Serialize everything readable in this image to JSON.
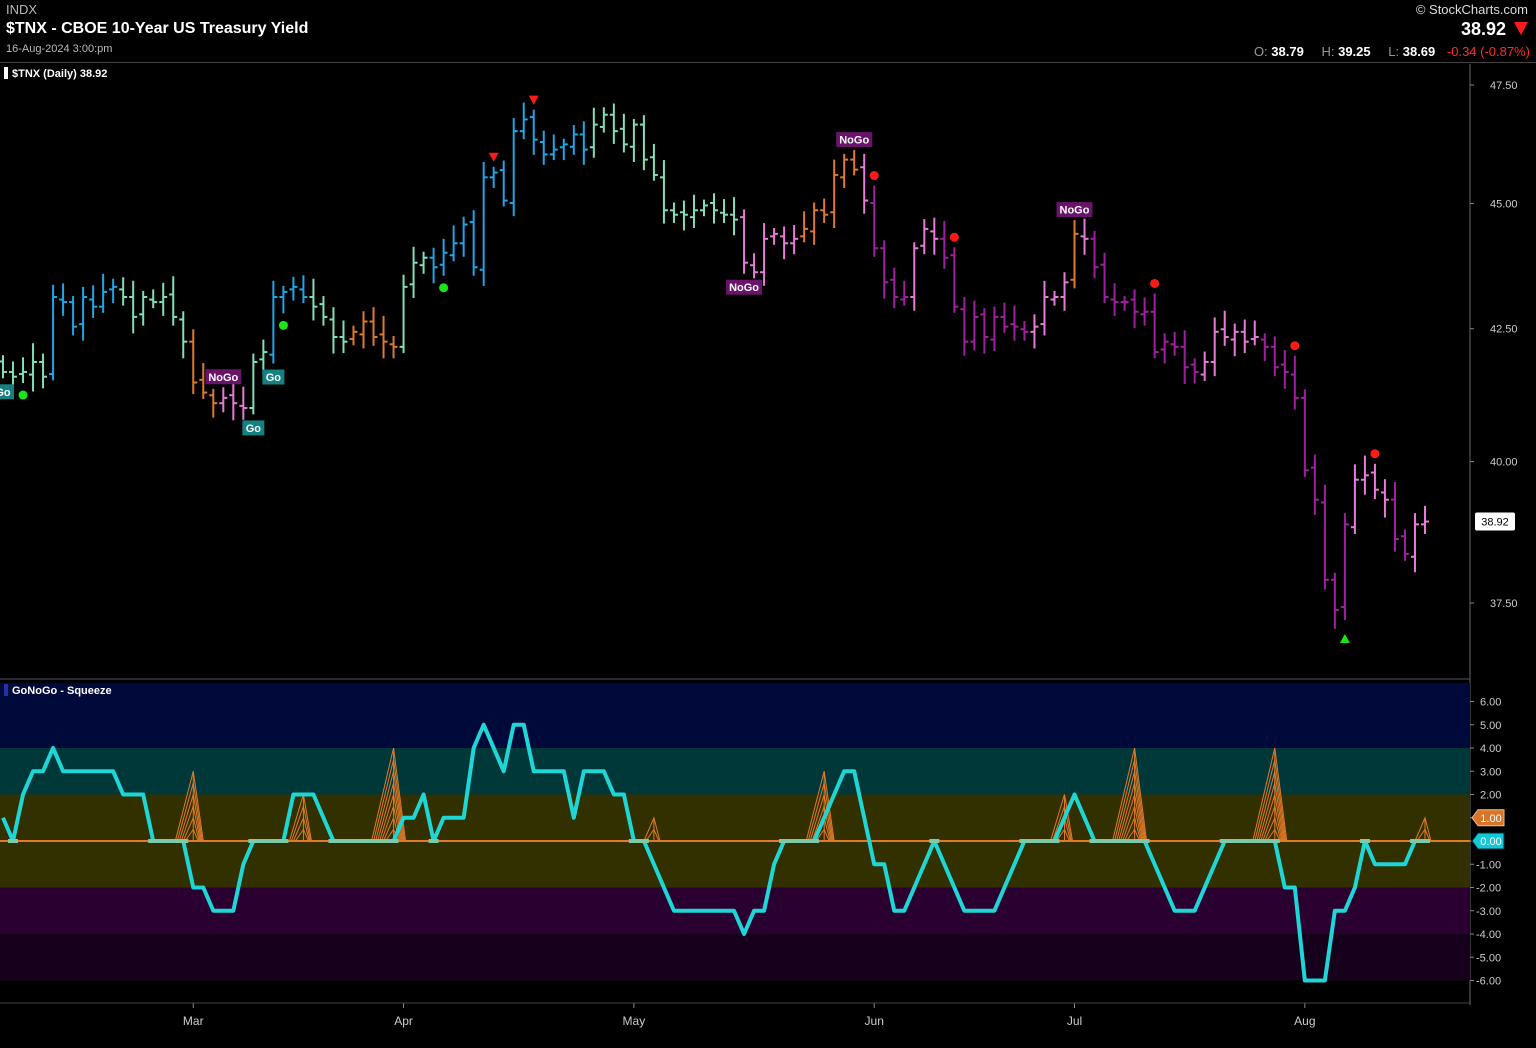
{
  "header": {
    "exchange": "INDX",
    "title": "$TNX - CBOE 10-Year US Treasury Yield",
    "datetime": "16-Aug-2024 3:00:pm",
    "brand": "© StockCharts.com",
    "last": "38.92",
    "direction_icon": "triangle-down-icon",
    "open_label": "O:",
    "open": "38.79",
    "high_label": "H:",
    "high": "39.25",
    "low_label": "L:",
    "low": "38.69",
    "change": "-0.34 (-0.87%)"
  },
  "colors": {
    "aqua": "#7fe0b8",
    "blue": "#1fa6e8",
    "orange": "#e07a2a",
    "pink": "#e87ad8",
    "purple": "#a01fa0",
    "oscillator": "#1fd6d6",
    "squeeze": "#e07a2a",
    "up_signal": "#19e619",
    "down_signal": "#ff1a1a"
  },
  "chart_data": [
    {
      "type": "bar",
      "legend": "$TNX (Daily) 38.92",
      "scale": "log",
      "ylim": [
        36.5,
        48.0
      ],
      "y_ticks": [
        "47.50",
        "45.00",
        "42.50",
        "40.00",
        "37.50"
      ],
      "last_value_label": "38.92",
      "x_month_ticks": [
        {
          "label": "Mar",
          "i": 19
        },
        {
          "label": "Apr",
          "i": 40
        },
        {
          "label": "May",
          "i": 63
        },
        {
          "label": "Jun",
          "i": 87
        },
        {
          "label": "Jul",
          "i": 107
        },
        {
          "label": "Aug",
          "i": 130
        }
      ],
      "close": [
        41.67,
        41.58,
        41.67,
        41.86,
        41.58,
        43.12,
        43.02,
        42.54,
        43.12,
        42.93,
        43.22,
        43.32,
        43.12,
        42.73,
        43.12,
        43.02,
        43.12,
        42.73,
        42.25,
        41.47,
        41.28,
        41.08,
        41.18,
        41.08,
        40.99,
        41.86,
        42.05,
        43.12,
        43.22,
        43.32,
        43.12,
        42.93,
        42.73,
        42.34,
        42.25,
        42.44,
        42.64,
        42.34,
        42.25,
        42.15,
        43.32,
        43.8,
        43.9,
        43.71,
        44.0,
        44.19,
        44.57,
        43.71,
        45.54,
        45.64,
        45.06,
        46.51,
        46.76,
        46.33,
        46.02,
        46.12,
        46.23,
        46.44,
        46.12,
        46.65,
        46.86,
        46.51,
        46.23,
        46.65,
        45.91,
        45.59,
        44.86,
        44.77,
        44.77,
        44.86,
        44.96,
        44.86,
        44.77,
        44.67,
        43.8,
        43.61,
        44.28,
        44.38,
        44.19,
        44.28,
        44.48,
        44.86,
        44.77,
        45.59,
        45.91,
        45.7,
        45.06,
        44.09,
        43.41,
        43.12,
        43.12,
        44.09,
        44.48,
        44.28,
        43.9,
        42.93,
        42.25,
        42.73,
        42.34,
        42.73,
        42.54,
        42.54,
        42.44,
        42.54,
        43.12,
        43.12,
        43.41,
        44.38,
        44.28,
        43.71,
        43.12,
        43.02,
        43.02,
        42.83,
        42.83,
        42.05,
        42.25,
        42.15,
        41.76,
        41.67,
        41.86,
        42.44,
        42.34,
        42.44,
        42.25,
        42.34,
        42.15,
        41.76,
        41.67,
        41.18,
        39.84,
        39.31,
        37.9,
        37.38,
        38.87,
        39.67,
        39.75,
        39.49,
        39.31,
        38.61,
        38.35,
        38.87,
        38.92
      ],
      "regimes": [
        [
          0,
          "aqua"
        ],
        [
          5,
          "blue"
        ],
        [
          12,
          "aqua"
        ],
        [
          19,
          "orange"
        ],
        [
          22,
          "pink"
        ],
        [
          25,
          "aqua"
        ],
        [
          27,
          "blue"
        ],
        [
          31,
          "aqua"
        ],
        [
          35,
          "orange"
        ],
        [
          40,
          "aqua"
        ],
        [
          43,
          "blue"
        ],
        [
          59,
          "aqua"
        ],
        [
          74,
          "pink"
        ],
        [
          80,
          "orange"
        ],
        [
          86,
          "pink"
        ],
        [
          87,
          "purple"
        ],
        [
          91,
          "pink"
        ],
        [
          94,
          "purple"
        ],
        [
          103,
          "pink"
        ],
        [
          107,
          "orange"
        ],
        [
          108,
          "pink"
        ],
        [
          109,
          "purple"
        ],
        [
          120,
          "pink"
        ],
        [
          126,
          "purple"
        ],
        [
          135,
          "pink"
        ],
        [
          139,
          "purple"
        ],
        [
          141,
          "pink"
        ]
      ],
      "signals": [
        {
          "i": 2,
          "type": "go-dot"
        },
        {
          "i": 28,
          "type": "go-dot"
        },
        {
          "i": 44,
          "type": "go-dot"
        },
        {
          "i": 49,
          "type": "nogo-triangle"
        },
        {
          "i": 53,
          "type": "nogo-triangle"
        },
        {
          "i": 87,
          "type": "nogo-dot"
        },
        {
          "i": 95,
          "type": "nogo-dot"
        },
        {
          "i": 115,
          "type": "nogo-dot"
        },
        {
          "i": 129,
          "type": "nogo-dot"
        },
        {
          "i": 137,
          "type": "nogo-dot"
        },
        {
          "i": 134,
          "type": "go-triangle"
        }
      ],
      "trend_labels": [
        {
          "i": 0,
          "text": "Go",
          "kind": "go",
          "place": "below"
        },
        {
          "i": 25,
          "text": "Go",
          "kind": "go",
          "place": "below"
        },
        {
          "i": 22,
          "text": "NoGo",
          "kind": "nogo",
          "place": "above"
        },
        {
          "i": 27,
          "text": "Go",
          "kind": "go",
          "place": "below"
        },
        {
          "i": 74,
          "text": "NoGo",
          "kind": "nogo",
          "place": "below"
        },
        {
          "i": 85,
          "text": "NoGo",
          "kind": "nogo",
          "place": "above"
        },
        {
          "i": 107,
          "text": "NoGo",
          "kind": "nogo",
          "place": "above"
        }
      ]
    },
    {
      "type": "line",
      "legend": "GoNoGo - Squeeze",
      "ylim": [
        -6.8,
        6.8
      ],
      "y_ticks": [
        "6.00",
        "5.00",
        "4.00",
        "3.00",
        "2.00",
        "1.00",
        "0.00",
        "-1.00",
        "-2.00",
        "-3.00",
        "-4.00",
        "-5.00",
        "-6.00"
      ],
      "squeeze_label": "1.00",
      "value_label": "0.00",
      "values": [
        1,
        0,
        2,
        3,
        3,
        4,
        3,
        3,
        3,
        3,
        3,
        3,
        2,
        2,
        2,
        0,
        0,
        0,
        0,
        -2,
        -2,
        -3,
        -3,
        -3,
        -1,
        0,
        0,
        0,
        0,
        2,
        2,
        2,
        1,
        0,
        0,
        0,
        0,
        0,
        0,
        0,
        1,
        1,
        2,
        0,
        1,
        1,
        1,
        4,
        5,
        4,
        3,
        5,
        5,
        3,
        3,
        3,
        3,
        1,
        3,
        3,
        3,
        2,
        2,
        0,
        0,
        -1,
        -2,
        -3,
        -3,
        -3,
        -3,
        -3,
        -3,
        -3,
        -4,
        -3,
        -3,
        -1,
        0,
        0,
        0,
        0,
        1,
        2,
        3,
        3,
        1,
        -1,
        -1,
        -3,
        -3,
        -2,
        -1,
        0,
        -1,
        -2,
        -3,
        -3,
        -3,
        -3,
        -2,
        -1,
        0,
        0,
        0,
        0,
        1,
        2,
        1,
        0,
        0,
        0,
        0,
        0,
        0,
        -1,
        -2,
        -3,
        -3,
        -3,
        -2,
        -1,
        0,
        0,
        0,
        0,
        0,
        0,
        -2,
        -2,
        -6,
        -6,
        -6,
        -3,
        -3,
        -2,
        0,
        -1,
        -1,
        -1,
        -1,
        0,
        0
      ],
      "squeeze_spikes": [
        {
          "i": 19,
          "max": 3
        },
        {
          "i": 30,
          "max": 2
        },
        {
          "i": 39,
          "max": 4
        },
        {
          "i": 65,
          "max": 1
        },
        {
          "i": 82,
          "max": 3
        },
        {
          "i": 106,
          "max": 2
        },
        {
          "i": 113,
          "max": 4
        },
        {
          "i": 127,
          "max": 4
        },
        {
          "i": 142,
          "max": 1
        }
      ]
    }
  ]
}
